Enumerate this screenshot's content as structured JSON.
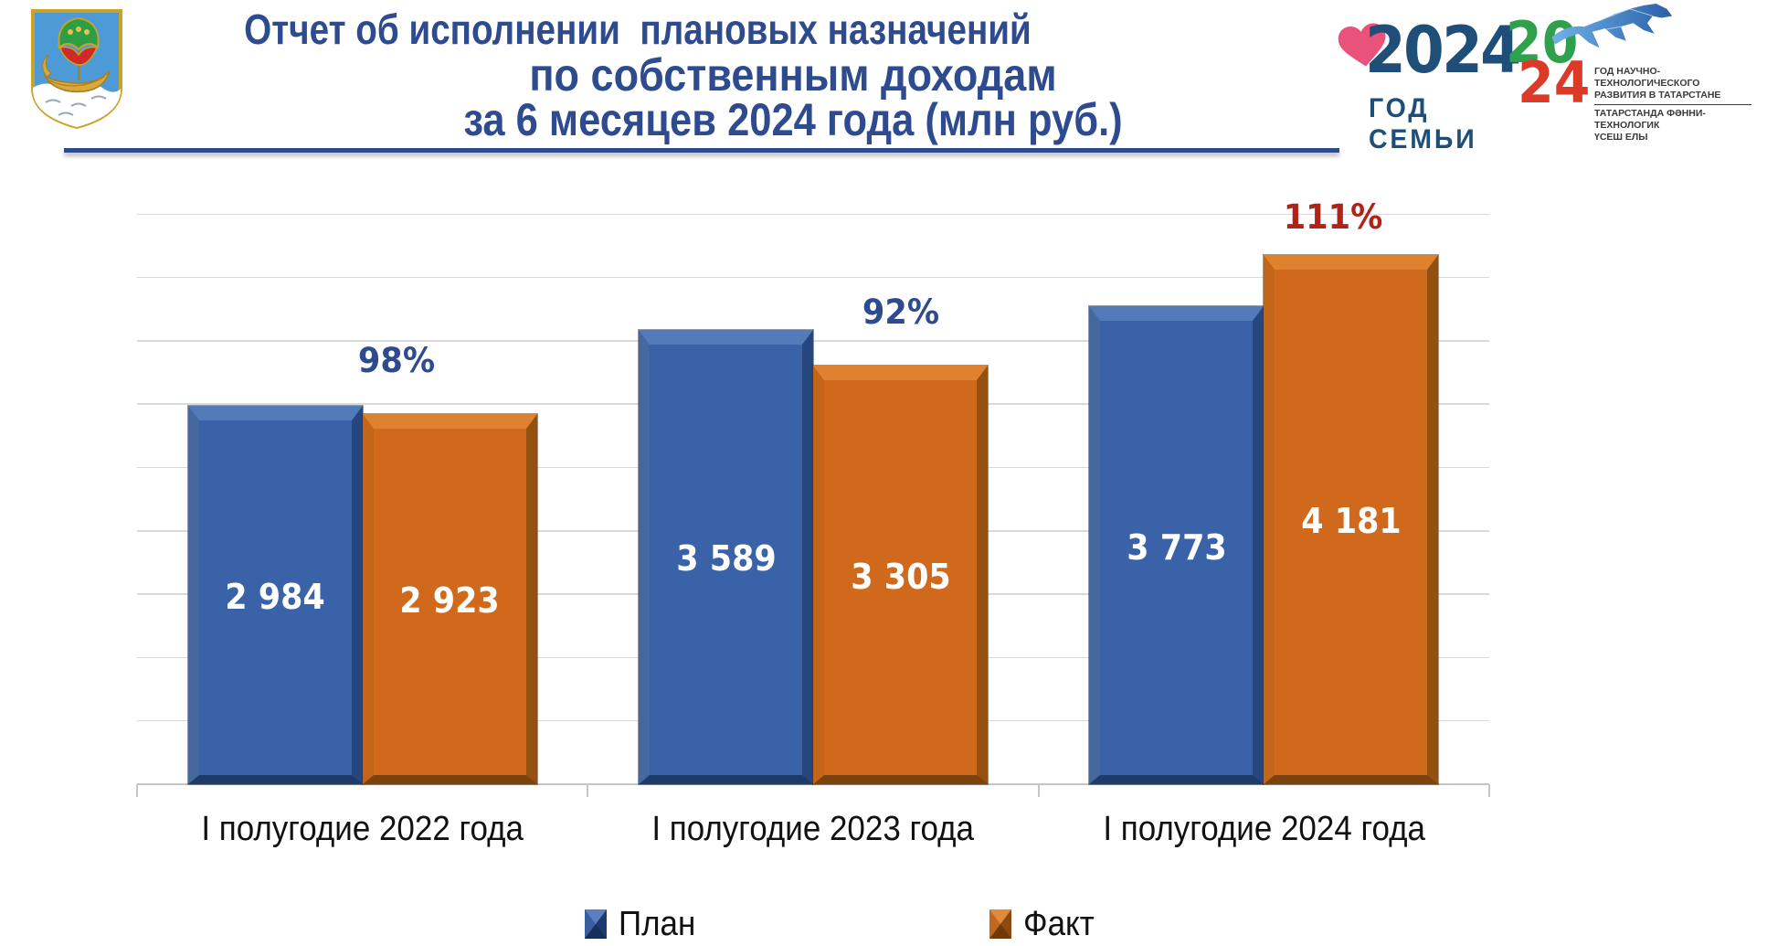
{
  "slide": {
    "title_lines": [
      "Отчет об исполнении  плановых назначений",
      "по собственным доходам",
      "за 6 месяцев 2024 года (млн руб.)"
    ],
    "title_color": "#2D4B8E"
  },
  "logos": {
    "family": {
      "year": "2024",
      "label": "ГОД СЕМЬИ"
    },
    "tatarstan": {
      "year_parts": [
        "20",
        "24"
      ],
      "lines_ru": [
        "ГОД НАУЧНО-ТЕХНОЛОГИЧЕСКОГО",
        "РАЗВИТИЯ В ТАТАРСТАНЕ"
      ],
      "lines_tt": [
        "ТАТАРСТАНДА ФӘННИ-ТЕХНОЛОГИК",
        "ҮСЕШ ЕЛЫ"
      ]
    }
  },
  "chart_data": {
    "type": "bar",
    "title": "Отчет об исполнении плановых назначений по собственным доходам за 6 месяцев 2024 года (млн руб.)",
    "unit": "млн руб.",
    "categories": [
      "I полугодие 2022 года",
      "I полугодие 2023 года",
      "I полугодие 2024 года"
    ],
    "series": [
      {
        "name": "План",
        "color": "#3A62A8",
        "values": [
          2984,
          3589,
          3773
        ],
        "labels": [
          "2 984",
          "3 589",
          "3 773"
        ]
      },
      {
        "name": "Факт",
        "color": "#D0691B",
        "values": [
          2923,
          3305,
          4181
        ],
        "labels": [
          "2 923",
          "3 305",
          "4 181"
        ]
      }
    ],
    "percent_labels": [
      {
        "text": "98%",
        "color": "#2D4B8E"
      },
      {
        "text": "92%",
        "color": "#2D4B8E"
      },
      {
        "text": "111%",
        "color": "#B22219"
      }
    ],
    "ylim": [
      0,
      5000
    ],
    "gridline_step": 500,
    "grid": true,
    "legend_position": "bottom"
  }
}
